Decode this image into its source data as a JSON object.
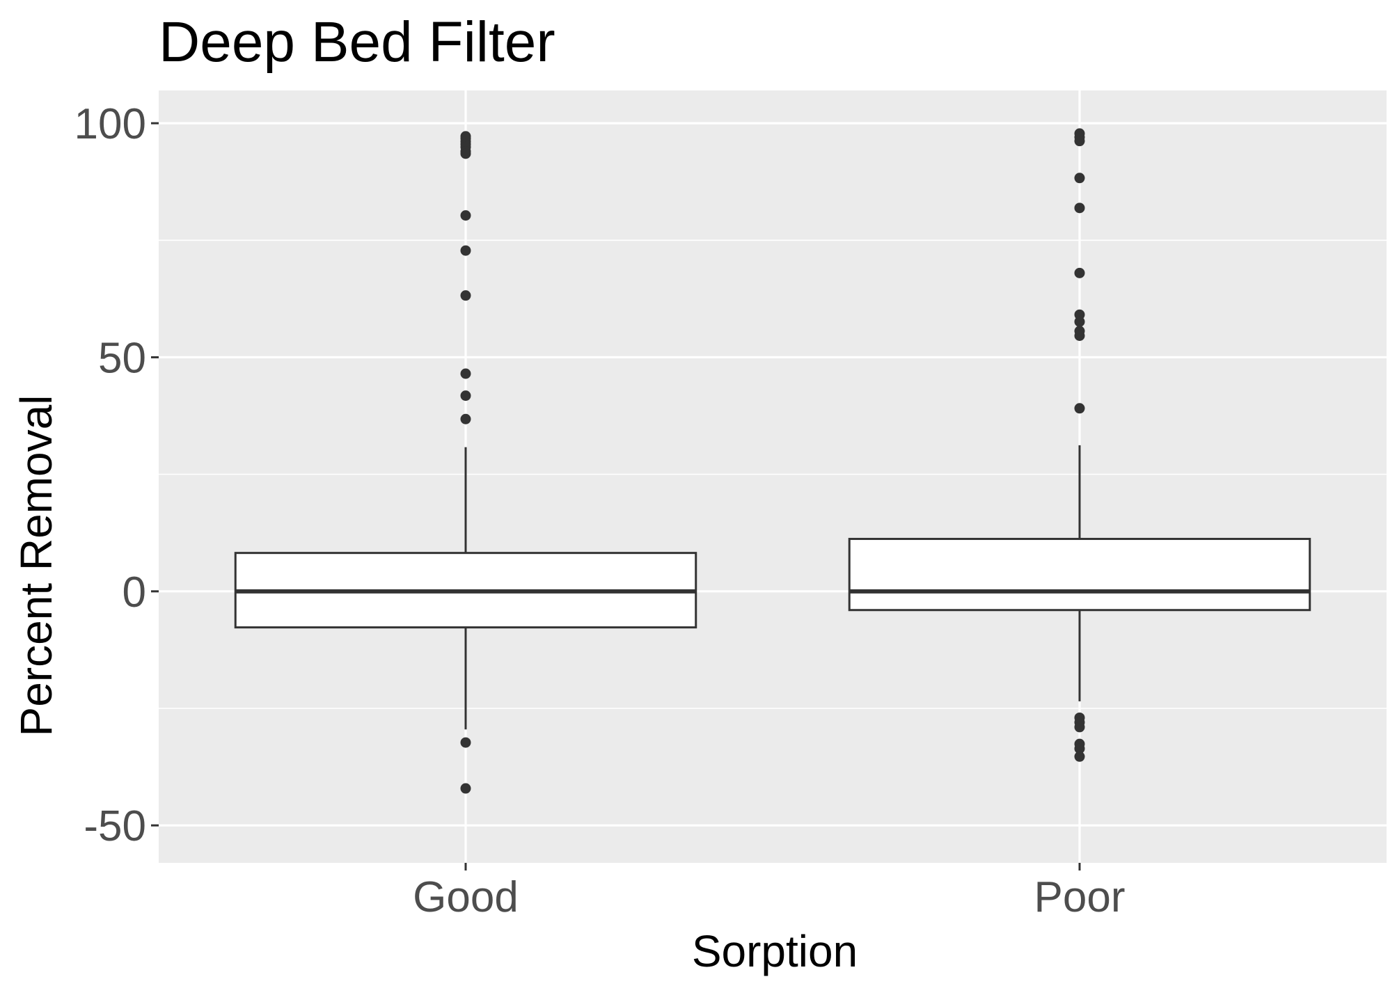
{
  "chart_data": {
    "type": "boxplot",
    "title": "Deep Bed Filter",
    "xlabel": "Sorption",
    "ylabel": "Percent Removal",
    "categories": [
      "Good",
      "Poor"
    ],
    "ylim": [
      -58,
      107
    ],
    "yticks": [
      -50,
      0,
      50,
      100
    ],
    "ytick_labels": [
      "-50",
      "0",
      "50",
      "100"
    ],
    "grid": true,
    "legend": "none",
    "colors": {
      "panel_background": "#ebebeb",
      "grid_line": "#ffffff",
      "box_fill": "#ffffff",
      "box_stroke": "#333333",
      "outlier": "#333333",
      "tick_label": "#4d4d4d",
      "tick_mark": "#333333"
    },
    "boxes": [
      {
        "category": "Good",
        "lower_whisker": -29.5,
        "q1": -7.7,
        "median": 0,
        "q3": 8.2,
        "upper_whisker": 30.8,
        "outliers": [
          97.2,
          96.7,
          96.1,
          95.5,
          94.9,
          94.0,
          93.5,
          80.3,
          72.8,
          63.2,
          46.5,
          41.8,
          36.8,
          -32.3,
          -42.1
        ]
      },
      {
        "category": "Poor",
        "lower_whisker": -23.5,
        "q1": -4.0,
        "median": 0,
        "q3": 11.2,
        "upper_whisker": 31.2,
        "outliers": [
          97.8,
          97.0,
          96.2,
          88.3,
          81.9,
          68.0,
          59.1,
          57.6,
          55.6,
          54.6,
          39.1,
          -27.0,
          -28.0,
          -29.0,
          -32.6,
          -33.6,
          -35.3
        ]
      }
    ]
  }
}
